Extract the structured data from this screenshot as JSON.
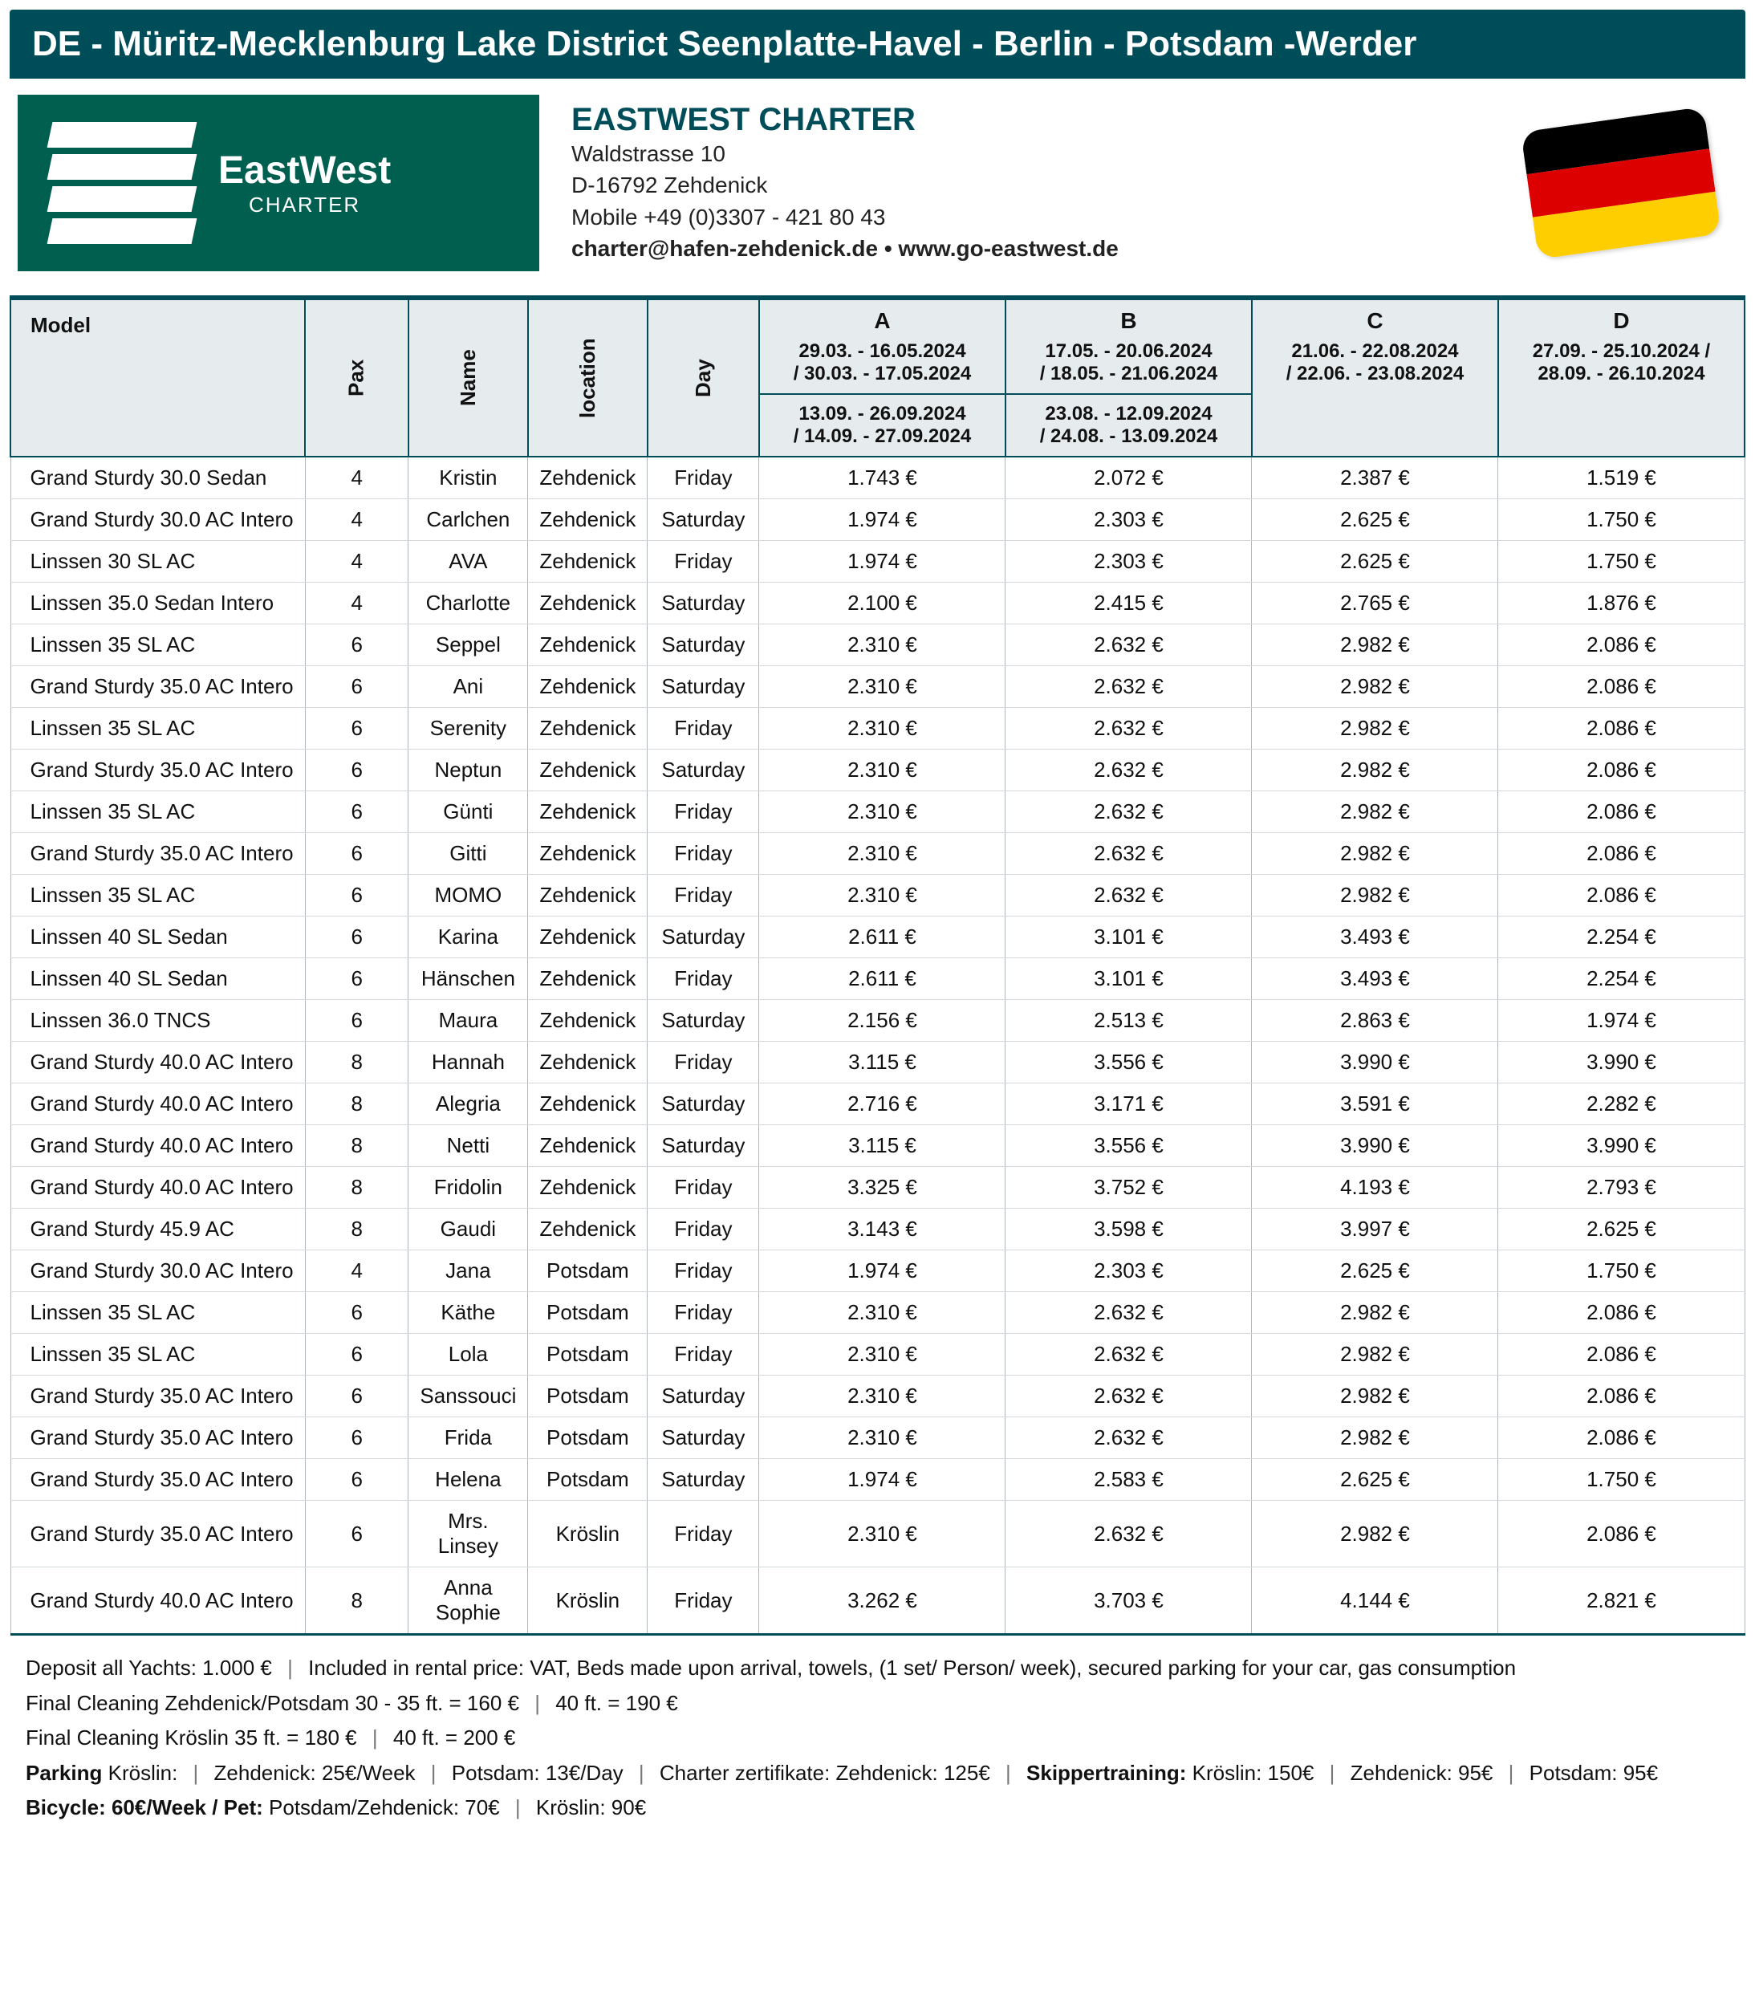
{
  "title": "DE - Müritz-Mecklenburg Lake District Seenplatte-Havel - Berlin - Potsdam -Werder",
  "company": {
    "name": "EASTWEST CHARTER",
    "logo_brand": "EastWest",
    "logo_sub": "CHARTER",
    "addr1": "Waldstrasse 10",
    "addr2": "D-16792  Zehdenick",
    "phone": "Mobile +49 (0)3307 - 421 80 43",
    "contact": "charter@hafen-zehdenick.de • www.go-eastwest.de"
  },
  "flag": {
    "colors": [
      "#000000",
      "#dd0000",
      "#ffce00"
    ]
  },
  "columns": {
    "model": "Model",
    "pax": "Pax",
    "name": "Name",
    "location": "location",
    "day": "Day"
  },
  "seasons": {
    "A": {
      "label": "A",
      "top1": "29.03. - 16.05.2024",
      "top2": "/ 30.03. - 17.05.2024",
      "bot1": "13.09. - 26.09.2024",
      "bot2": "/ 14.09. - 27.09.2024"
    },
    "B": {
      "label": "B",
      "top1": "17.05. - 20.06.2024",
      "top2": "/ 18.05. - 21.06.2024",
      "bot1": "23.08. - 12.09.2024",
      "bot2": "/ 24.08. - 13.09.2024"
    },
    "C": {
      "label": "C",
      "top1": "21.06. - 22.08.2024",
      "top2": "/ 22.06. - 23.08.2024"
    },
    "D": {
      "label": "D",
      "top1": "27.09. - 25.10.2024 /",
      "top2": "28.09. - 26.10.2024"
    }
  },
  "rows": [
    {
      "model": "Grand Sturdy 30.0 Sedan",
      "pax": "4",
      "name": "Kristin",
      "loc": "Zehdenick",
      "day": "Friday",
      "A": "1.743 €",
      "B": "2.072 €",
      "C": "2.387 €",
      "D": "1.519 €"
    },
    {
      "model": "Grand Sturdy 30.0 AC Intero",
      "pax": "4",
      "name": "Carlchen",
      "loc": "Zehdenick",
      "day": "Saturday",
      "A": "1.974 €",
      "B": "2.303 €",
      "C": "2.625 €",
      "D": "1.750 €"
    },
    {
      "model": "Linssen 30 SL AC",
      "pax": "4",
      "name": "AVA",
      "loc": "Zehdenick",
      "day": "Friday",
      "A": "1.974 €",
      "B": "2.303 €",
      "C": "2.625 €",
      "D": "1.750 €"
    },
    {
      "model": "Linssen 35.0 Sedan Intero",
      "pax": "4",
      "name": "Charlotte",
      "loc": "Zehdenick",
      "day": "Saturday",
      "A": "2.100 €",
      "B": "2.415 €",
      "C": "2.765 €",
      "D": "1.876 €"
    },
    {
      "model": "Linssen 35 SL AC",
      "pax": "6",
      "name": "Seppel",
      "loc": "Zehdenick",
      "day": "Saturday",
      "A": "2.310 €",
      "B": "2.632 €",
      "C": "2.982 €",
      "D": "2.086 €"
    },
    {
      "model": "Grand Sturdy 35.0 AC Intero",
      "pax": "6",
      "name": "Ani",
      "loc": "Zehdenick",
      "day": "Saturday",
      "A": "2.310 €",
      "B": "2.632 €",
      "C": "2.982 €",
      "D": "2.086 €"
    },
    {
      "model": "Linssen 35 SL AC",
      "pax": "6",
      "name": "Serenity",
      "loc": "Zehdenick",
      "day": "Friday",
      "A": "2.310 €",
      "B": "2.632 €",
      "C": "2.982 €",
      "D": "2.086 €"
    },
    {
      "model": "Grand Sturdy 35.0 AC Intero",
      "pax": "6",
      "name": "Neptun",
      "loc": "Zehdenick",
      "day": "Saturday",
      "A": "2.310 €",
      "B": "2.632 €",
      "C": "2.982 €",
      "D": "2.086 €"
    },
    {
      "model": "Linssen 35 SL AC",
      "pax": "6",
      "name": "Günti",
      "loc": "Zehdenick",
      "day": "Friday",
      "A": "2.310 €",
      "B": "2.632 €",
      "C": "2.982 €",
      "D": "2.086 €"
    },
    {
      "model": "Grand Sturdy 35.0 AC Intero",
      "pax": "6",
      "name": "Gitti",
      "loc": "Zehdenick",
      "day": "Friday",
      "A": "2.310 €",
      "B": "2.632 €",
      "C": "2.982 €",
      "D": "2.086 €"
    },
    {
      "model": "Linssen 35 SL AC",
      "pax": "6",
      "name": "MOMO",
      "loc": "Zehdenick",
      "day": "Friday",
      "A": "2.310 €",
      "B": "2.632 €",
      "C": "2.982 €",
      "D": "2.086 €"
    },
    {
      "model": "Linssen 40 SL Sedan",
      "pax": "6",
      "name": "Karina",
      "loc": "Zehdenick",
      "day": "Saturday",
      "A": "2.611 €",
      "B": "3.101 €",
      "C": "3.493 €",
      "D": "2.254 €"
    },
    {
      "model": "Linssen 40 SL Sedan",
      "pax": "6",
      "name": "Hänschen",
      "loc": "Zehdenick",
      "day": "Friday",
      "A": "2.611 €",
      "B": "3.101 €",
      "C": "3.493 €",
      "D": "2.254 €"
    },
    {
      "model": "Linssen 36.0 TNCS",
      "pax": "6",
      "name": "Maura",
      "loc": "Zehdenick",
      "day": "Saturday",
      "A": "2.156 €",
      "B": "2.513 €",
      "C": "2.863 €",
      "D": "1.974 €"
    },
    {
      "model": "Grand Sturdy 40.0 AC Intero",
      "pax": "8",
      "name": "Hannah",
      "loc": "Zehdenick",
      "day": "Friday",
      "A": "3.115 €",
      "B": "3.556 €",
      "C": "3.990 €",
      "D": "3.990 €"
    },
    {
      "model": "Grand Sturdy 40.0 AC Intero",
      "pax": "8",
      "name": "Alegria",
      "loc": "Zehdenick",
      "day": "Saturday",
      "A": "2.716 €",
      "B": "3.171 €",
      "C": "3.591 €",
      "D": "2.282 €"
    },
    {
      "model": "Grand Sturdy 40.0 AC Intero",
      "pax": "8",
      "name": "Netti",
      "loc": "Zehdenick",
      "day": "Saturday",
      "A": "3.115 €",
      "B": "3.556 €",
      "C": "3.990 €",
      "D": "3.990 €"
    },
    {
      "model": "Grand Sturdy 40.0 AC Intero",
      "pax": "8",
      "name": "Fridolin",
      "loc": "Zehdenick",
      "day": "Friday",
      "A": "3.325 €",
      "B": "3.752 €",
      "C": "4.193 €",
      "D": "2.793 €"
    },
    {
      "model": "Grand Sturdy 45.9 AC",
      "pax": "8",
      "name": "Gaudi",
      "loc": "Zehdenick",
      "day": "Friday",
      "A": "3.143 €",
      "B": "3.598 €",
      "C": "3.997 €",
      "D": "2.625 €"
    },
    {
      "model": "Grand Sturdy 30.0 AC Intero",
      "pax": "4",
      "name": "Jana",
      "loc": "Potsdam",
      "day": "Friday",
      "A": "1.974 €",
      "B": "2.303 €",
      "C": "2.625 €",
      "D": "1.750 €"
    },
    {
      "model": "Linssen 35 SL AC",
      "pax": "6",
      "name": "Käthe",
      "loc": "Potsdam",
      "day": "Friday",
      "A": "2.310 €",
      "B": "2.632 €",
      "C": "2.982 €",
      "D": "2.086 €"
    },
    {
      "model": "Linssen 35 SL AC",
      "pax": "6",
      "name": "Lola",
      "loc": "Potsdam",
      "day": "Friday",
      "A": "2.310 €",
      "B": "2.632 €",
      "C": "2.982 €",
      "D": "2.086 €"
    },
    {
      "model": "Grand Sturdy 35.0 AC Intero",
      "pax": "6",
      "name": "Sanssouci",
      "loc": "Potsdam",
      "day": "Saturday",
      "A": "2.310 €",
      "B": "2.632 €",
      "C": "2.982 €",
      "D": "2.086 €"
    },
    {
      "model": "Grand Sturdy 35.0 AC Intero",
      "pax": "6",
      "name": "Frida",
      "loc": "Potsdam",
      "day": "Saturday",
      "A": "2.310 €",
      "B": "2.632 €",
      "C": "2.982 €",
      "D": "2.086 €"
    },
    {
      "model": "Grand Sturdy 35.0 AC Intero",
      "pax": "6",
      "name": "Helena",
      "loc": "Potsdam",
      "day": "Saturday",
      "A": "1.974 €",
      "B": "2.583 €",
      "C": "2.625 €",
      "D": "1.750 €"
    },
    {
      "model": "Grand Sturdy 35.0 AC Intero",
      "pax": "6",
      "name": "Mrs. Linsey",
      "loc": "Kröslin",
      "day": "Friday",
      "A": "2.310 €",
      "B": "2.632 €",
      "C": "2.982 €",
      "D": "2.086 €"
    },
    {
      "model": "Grand Sturdy 40.0 AC Intero",
      "pax": "8",
      "name": "Anna Sophie",
      "loc": "Kröslin",
      "day": "Friday",
      "A": "3.262 €",
      "B": "3.703 €",
      "C": "4.144 €",
      "D": "2.821 €"
    }
  ],
  "notes": {
    "l1a": "Deposit all Yachts: 1.000 €",
    "l1b": "Included in rental price: VAT, Beds made upon arrival, towels, (1 set/ Person/ week), secured parking for your car, gas consumption",
    "l2a": "Final Cleaning Zehdenick/Potsdam  30 - 35 ft. = 160 €",
    "l2b": "40 ft. = 190 €",
    "l3a": "Final Cleaning Kröslin  35 ft. = 180 €",
    "l3b": "40 ft. = 200 €",
    "l4_park": "Parking",
    "l4a": "Kröslin:",
    "l4b": "Zehdenick: 25€/Week",
    "l4c": "Potsdam: 13€/Day",
    "l4d": "Charter zertifikate: Zehdenick: 125€",
    "l4_skip": "Skippertraining:",
    "l4e": "Kröslin: 150€",
    "l4f": "Zehdenick: 95€",
    "l4g": "Potsdam: 95€",
    "l5_bike": "Bicycle: 60€/Week / Pet:",
    "l5a": "Potsdam/Zehdenick: 70€",
    "l5b": "Kröslin: 90€"
  }
}
